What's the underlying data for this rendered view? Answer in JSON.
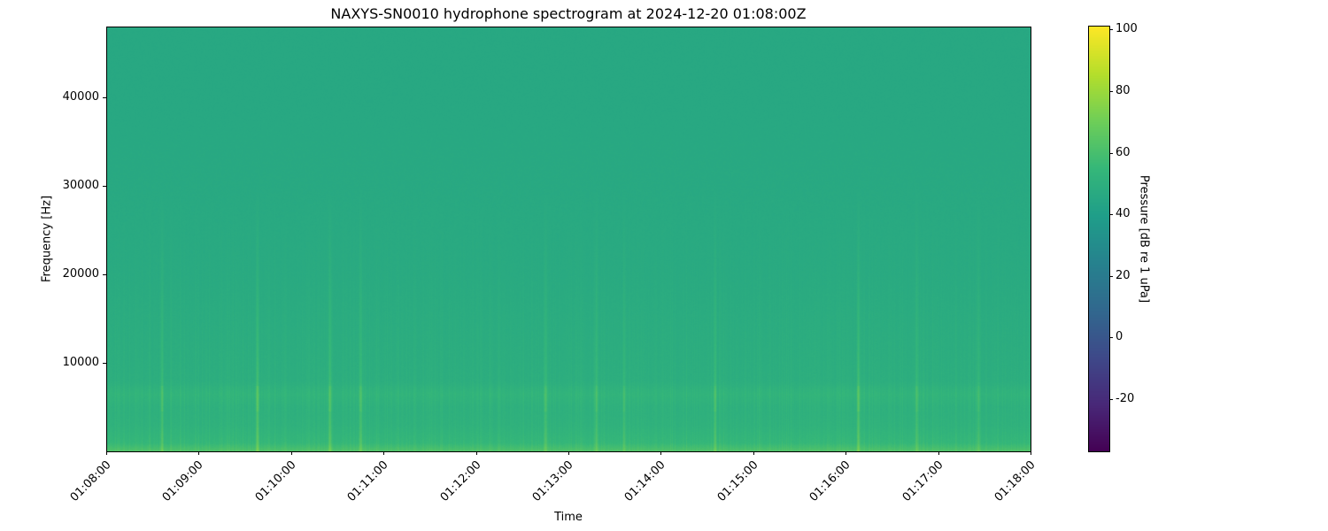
{
  "chart_data": {
    "type": "heatmap",
    "title": "NAXYS-SN0010 hydrophone spectrogram at 2024-12-20 01:08:00Z",
    "xlabel": "Time",
    "ylabel": "Frequency [Hz]",
    "colorbar_label": "Pressure [dB re 1 uPa]",
    "colormap": "viridis",
    "xlim": [
      "01:08:00",
      "01:18:00"
    ],
    "ylim": [
      0,
      48000
    ],
    "clim": [
      -37,
      101
    ],
    "x_ticks": [
      "01:08:00",
      "01:09:00",
      "01:10:00",
      "01:11:00",
      "01:12:00",
      "01:13:00",
      "01:14:00",
      "01:15:00",
      "01:16:00",
      "01:17:00",
      "01:18:00"
    ],
    "y_ticks": [
      10000,
      20000,
      30000,
      40000
    ],
    "colorbar_ticks": [
      100,
      80,
      60,
      40,
      20,
      0,
      -20
    ],
    "background_level_db": {
      "frequencies_hz": [
        0,
        500,
        1000,
        3000,
        5000,
        6500,
        8000,
        15000,
        20000,
        30000,
        40000,
        48000
      ],
      "levels_db": [
        62,
        58,
        54,
        51,
        50,
        52,
        49,
        48,
        47,
        46.5,
        46,
        46
      ]
    },
    "transients": {
      "times": [
        "01:08:36",
        "01:09:38",
        "01:10:25",
        "01:10:45",
        "01:12:45",
        "01:13:18",
        "01:13:36",
        "01:14:35",
        "01:16:08",
        "01:16:46",
        "01:17:26"
      ],
      "peak_db": [
        60,
        64,
        63,
        60,
        58,
        59,
        58,
        58,
        64,
        59,
        58
      ]
    },
    "grid": false
  }
}
